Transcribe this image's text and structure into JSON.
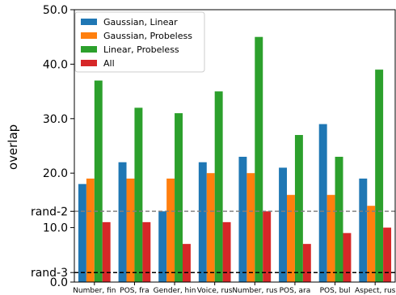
{
  "chart_data": {
    "type": "bar",
    "title": "",
    "xlabel": "",
    "ylabel": "overlap",
    "ylim": [
      0,
      50
    ],
    "yticks": [
      0,
      10,
      20,
      30,
      40,
      50
    ],
    "ytick_labels": [
      "0.0",
      "10.0",
      "20.0",
      "30.0",
      "40.0",
      "50.0"
    ],
    "grid": false,
    "legend_position": "top-left",
    "categories": [
      "Number, fin",
      "POS, fra",
      "Gender, hin",
      "Voice, rus",
      "Number, rus",
      "POS, ara",
      "POS, bul",
      "Aspect, rus"
    ],
    "series": [
      {
        "name": "Gaussian, Linear",
        "color": "#1f77b4",
        "values": [
          18,
          22,
          13,
          22,
          23,
          21,
          29,
          19
        ]
      },
      {
        "name": "Gaussian, Probeless",
        "color": "#ff7f0e",
        "values": [
          19,
          19,
          19,
          20,
          20,
          16,
          16,
          14
        ]
      },
      {
        "name": "Linear, Probeless",
        "color": "#2ca02c",
        "values": [
          37,
          32,
          31,
          35,
          45,
          27,
          23,
          39
        ]
      },
      {
        "name": "All",
        "color": "#d62728",
        "values": [
          11,
          11,
          7,
          11,
          13,
          7,
          9,
          10
        ]
      }
    ],
    "reference_lines": [
      {
        "label": "rand-2",
        "value": 13,
        "color": "#808080"
      },
      {
        "label": "rand-3",
        "value": 1.75,
        "color": "#000000"
      }
    ]
  }
}
